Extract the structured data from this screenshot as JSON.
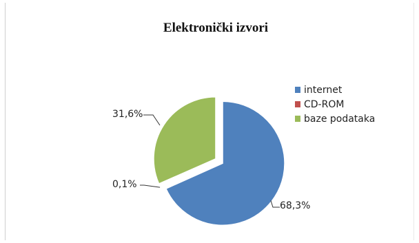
{
  "chart_data": {
    "type": "pie",
    "title": "Elektronički izvori",
    "categories": [
      "internet",
      "CD-ROM",
      "baze podataka"
    ],
    "values": [
      68.3,
      0.1,
      31.6
    ],
    "data_labels": [
      "68,3%",
      "0,1%",
      "31,6%"
    ],
    "colors": [
      "#4f81bd",
      "#c0504d",
      "#9bbb59"
    ],
    "legend_position": "right",
    "exploded": true
  }
}
